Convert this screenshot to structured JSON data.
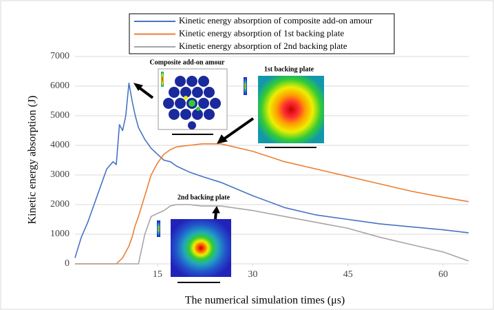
{
  "chart_data": {
    "type": "line",
    "x": [
      2,
      3,
      4,
      5,
      6,
      7,
      8,
      8.5,
      9,
      9.5,
      10,
      10.5,
      11,
      11.5,
      12,
      13,
      14,
      15,
      16,
      17,
      18,
      20,
      22,
      25,
      30,
      35,
      40,
      45,
      50,
      55,
      60,
      64
    ],
    "series": [
      {
        "name": "Kinetic energy absorption of composite add-on amour",
        "color": "#4472c4",
        "values": [
          200,
          900,
          1400,
          2000,
          2600,
          3200,
          3450,
          3350,
          4700,
          4500,
          5000,
          6100,
          5500,
          5000,
          4600,
          4200,
          3900,
          3700,
          3500,
          3450,
          3300,
          3100,
          2950,
          2750,
          2300,
          1900,
          1650,
          1500,
          1350,
          1250,
          1150,
          1050
        ]
      },
      {
        "name": "Kinetic energy absorption of 1st backing plate",
        "color": "#ed7d31",
        "values": [
          0,
          0,
          0,
          0,
          0,
          0,
          0,
          0,
          100,
          200,
          400,
          600,
          900,
          1300,
          1600,
          2300,
          3000,
          3400,
          3700,
          3850,
          3950,
          4000,
          4050,
          4050,
          3800,
          3450,
          3200,
          2950,
          2700,
          2450,
          2250,
          2100
        ]
      },
      {
        "name": "Kinetic energy absorption of 2nd backing plate",
        "color": "#a5a5a5",
        "values": [
          0,
          0,
          0,
          0,
          0,
          0,
          0,
          0,
          0,
          0,
          0,
          0,
          0,
          0,
          0,
          1000,
          1600,
          1700,
          1800,
          1950,
          2000,
          2000,
          1950,
          1950,
          1800,
          1600,
          1400,
          1200,
          900,
          650,
          400,
          100
        ]
      }
    ],
    "xlim": [
      2,
      64
    ],
    "xticks": [
      15,
      30,
      45,
      60
    ],
    "ylim": [
      0,
      7000
    ],
    "yticks": [
      0,
      1000,
      2000,
      3000,
      4000,
      5000,
      6000,
      7000
    ],
    "grid": true,
    "x_label": "The numerical simulation times (μs)",
    "y_label": "Kinetic energy absorption (J)",
    "annotations": [
      "Composite add-on amour",
      "1st backing plate",
      "2nd backing plate"
    ]
  }
}
